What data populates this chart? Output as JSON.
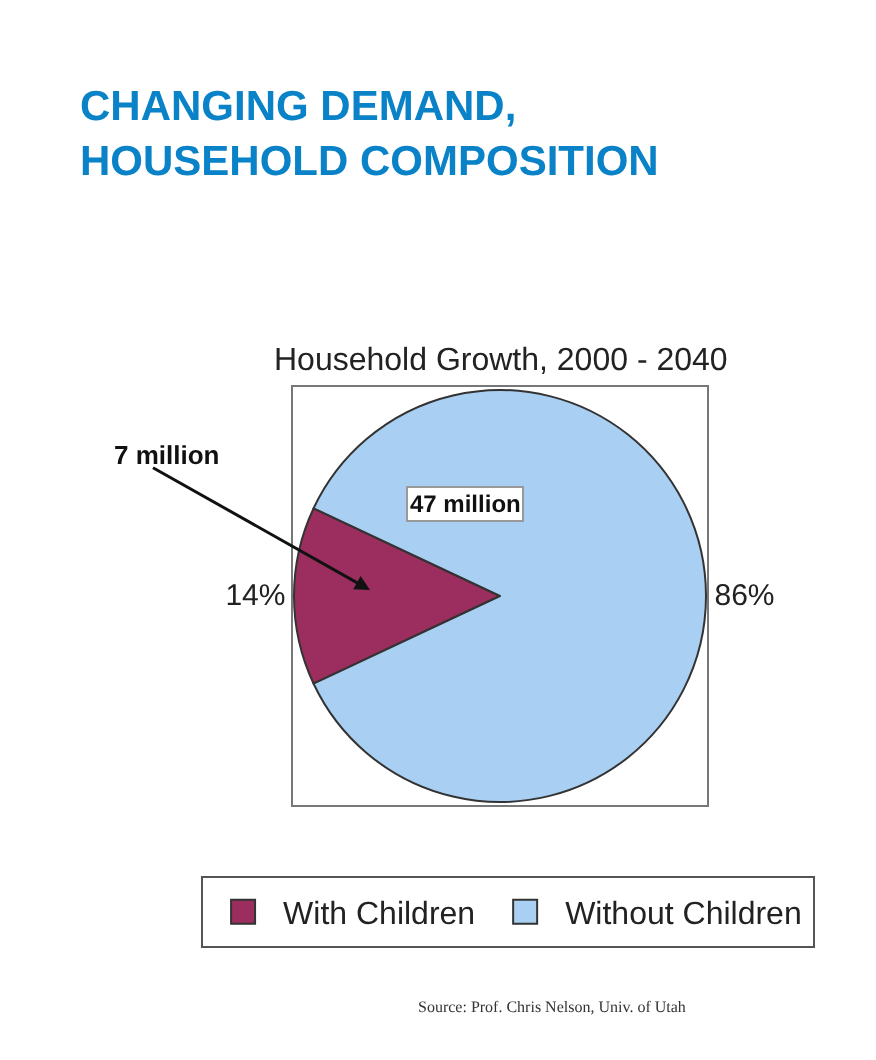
{
  "chart_data": {
    "type": "pie",
    "title": "CHANGING DEMAND,\nHOUSEHOLD COMPOSITION",
    "subtitle": "Household Growth, 2000 - 2040",
    "categories": [
      "With Children",
      "Without Children"
    ],
    "values": [
      14,
      86
    ],
    "colors": [
      "#9b2d5f",
      "#a9d0f2"
    ],
    "value_labels": [
      "14%",
      "86%"
    ],
    "legend": "bottom",
    "annotations": [
      "7 million",
      "47 million",
      "Source: Prof. Chris Nelson, Univ. of Utah"
    ]
  }
}
